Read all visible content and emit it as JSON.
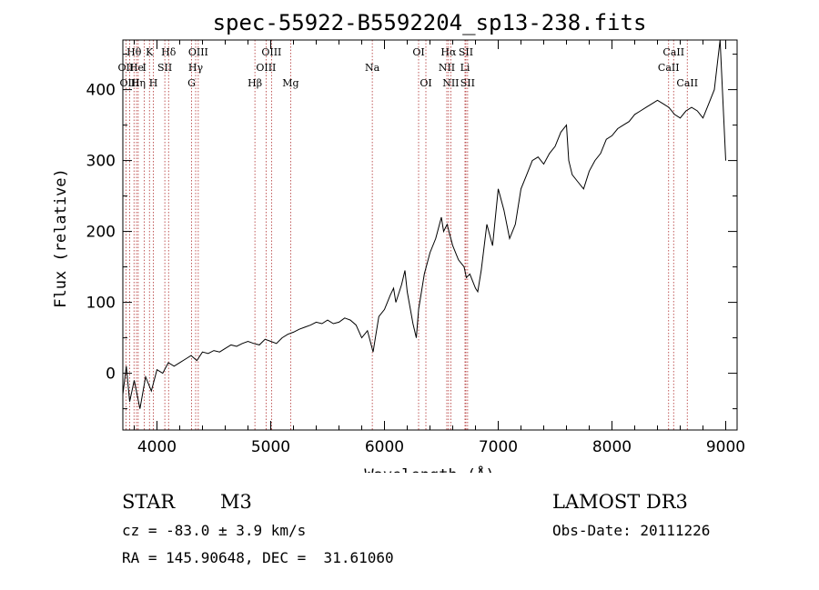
{
  "chart_data": {
    "type": "line",
    "title": "spec-55922-B5592204_sp13-238.fits",
    "xlabel": "Wavelength (Å)",
    "ylabel": "Flux (relative)",
    "xlim": [
      3700,
      9100
    ],
    "ylim": [
      -80,
      470
    ],
    "xticks": [
      4000,
      5000,
      6000,
      7000,
      8000,
      9000
    ],
    "yticks": [
      0,
      100,
      200,
      300,
      400
    ],
    "grid": false,
    "series": [
      {
        "name": "spectrum",
        "x": [
          3700,
          3730,
          3760,
          3800,
          3850,
          3900,
          3950,
          4000,
          4050,
          4100,
          4150,
          4200,
          4250,
          4300,
          4350,
          4400,
          4450,
          4500,
          4550,
          4600,
          4650,
          4700,
          4750,
          4800,
          4850,
          4900,
          4950,
          5000,
          5050,
          5100,
          5150,
          5200,
          5250,
          5300,
          5350,
          5400,
          5450,
          5500,
          5550,
          5600,
          5650,
          5700,
          5750,
          5800,
          5850,
          5900,
          5920,
          5950,
          6000,
          6050,
          6080,
          6100,
          6150,
          6180,
          6200,
          6250,
          6280,
          6300,
          6350,
          6400,
          6450,
          6500,
          6520,
          6550,
          6600,
          6650,
          6700,
          6720,
          6750,
          6800,
          6820,
          6850,
          6900,
          6950,
          7000,
          7050,
          7100,
          7150,
          7200,
          7250,
          7300,
          7350,
          7400,
          7450,
          7500,
          7550,
          7600,
          7620,
          7650,
          7700,
          7750,
          7800,
          7850,
          7900,
          7950,
          8000,
          8050,
          8100,
          8150,
          8200,
          8250,
          8300,
          8350,
          8400,
          8450,
          8500,
          8550,
          8600,
          8650,
          8700,
          8750,
          8800,
          8850,
          8900,
          8950,
          9000
        ],
        "y": [
          -30,
          10,
          -40,
          -10,
          -50,
          -5,
          -25,
          5,
          0,
          15,
          10,
          15,
          20,
          25,
          18,
          30,
          28,
          32,
          30,
          35,
          40,
          38,
          42,
          45,
          42,
          40,
          48,
          45,
          42,
          50,
          55,
          58,
          62,
          65,
          68,
          72,
          70,
          75,
          70,
          72,
          78,
          75,
          68,
          50,
          60,
          30,
          50,
          80,
          90,
          110,
          120,
          100,
          125,
          145,
          115,
          70,
          50,
          90,
          140,
          170,
          190,
          220,
          200,
          210,
          180,
          160,
          150,
          135,
          140,
          120,
          115,
          145,
          210,
          180,
          260,
          230,
          190,
          210,
          260,
          280,
          300,
          305,
          295,
          310,
          320,
          340,
          350,
          300,
          280,
          270,
          260,
          285,
          300,
          310,
          330,
          335,
          345,
          350,
          355,
          365,
          370,
          375,
          380,
          385,
          380,
          375,
          365,
          360,
          370,
          375,
          370,
          360,
          380,
          400,
          470,
          300
        ]
      }
    ],
    "lines": [
      {
        "label": "Hθ",
        "x": 3798,
        "row": 0
      },
      {
        "label": "OII",
        "x": 3727,
        "row": 1
      },
      {
        "label": "OIII",
        "x": 3760,
        "row": 2
      },
      {
        "label": "He",
        "x": 3820,
        "row": 1
      },
      {
        "label": "Hη",
        "x": 3835,
        "row": 2
      },
      {
        "label": "K",
        "x": 3934,
        "row": 0
      },
      {
        "label": "I",
        "x": 3889,
        "row": 1
      },
      {
        "label": "SII",
        "x": 4069,
        "row": 1
      },
      {
        "label": "H",
        "x": 3968,
        "row": 2
      },
      {
        "label": "Hδ",
        "x": 4102,
        "row": 0
      },
      {
        "label": "OIII",
        "x": 4363,
        "row": 0
      },
      {
        "label": "Hγ",
        "x": 4340,
        "row": 1
      },
      {
        "label": "G",
        "x": 4304,
        "row": 2
      },
      {
        "label": "OIII",
        "x": 5007,
        "row": 0
      },
      {
        "label": "OIII",
        "x": 4959,
        "row": 1
      },
      {
        "label": "Hβ",
        "x": 4861,
        "row": 2
      },
      {
        "label": "Mg",
        "x": 5175,
        "row": 2
      },
      {
        "label": "Na",
        "x": 5893,
        "row": 1
      },
      {
        "label": "OI",
        "x": 6300,
        "row": 0
      },
      {
        "label": "OI",
        "x": 6364,
        "row": 2
      },
      {
        "label": "Hα",
        "x": 6563,
        "row": 0
      },
      {
        "label": "SII",
        "x": 6716,
        "row": 0
      },
      {
        "label": "NII",
        "x": 6548,
        "row": 1
      },
      {
        "label": "Li",
        "x": 6708,
        "row": 1
      },
      {
        "label": "NII",
        "x": 6583,
        "row": 2
      },
      {
        "label": "SII",
        "x": 6731,
        "row": 2
      },
      {
        "label": "CaII",
        "x": 8542,
        "row": 0
      },
      {
        "label": "CaII",
        "x": 8498,
        "row": 1
      },
      {
        "label": "CaII",
        "x": 8662,
        "row": 2
      }
    ]
  },
  "info": {
    "class_label": "STAR",
    "subclass": "M3",
    "survey": "LAMOST DR3",
    "cz": "cz = -83.0 ± 3.9 km/s",
    "obs_date": "Obs-Date: 20111226",
    "coords": "RA = 145.90648, DEC =  31.61060"
  },
  "colors": {
    "line_marker": "#b03030",
    "spectrum": "#000000"
  }
}
